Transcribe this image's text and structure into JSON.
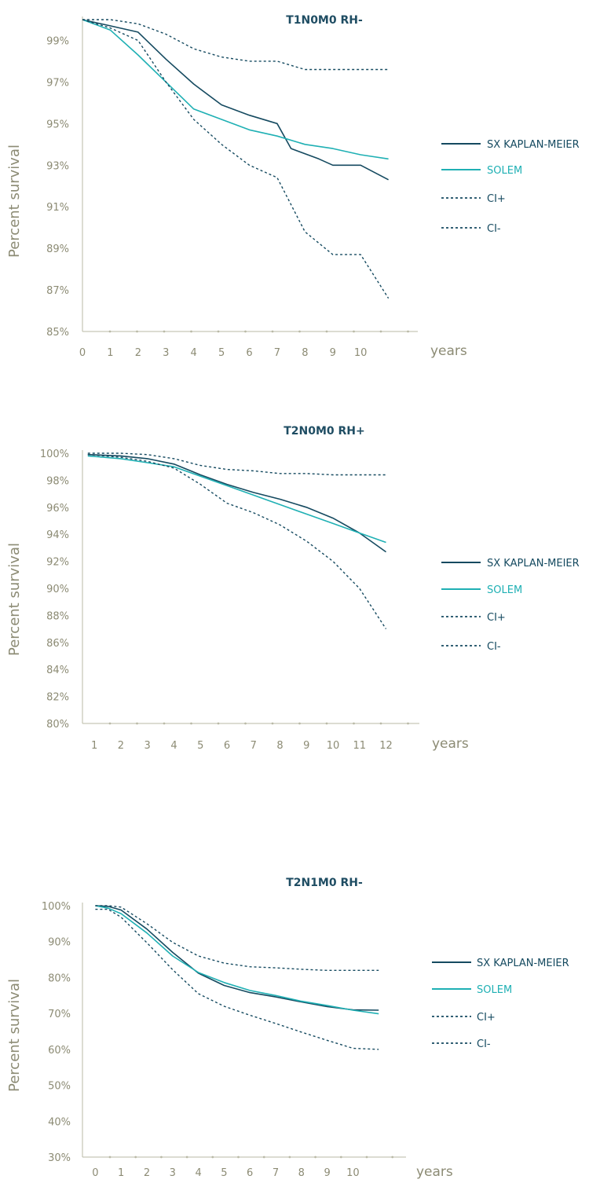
{
  "colors": {
    "dark": "#154a60",
    "teal": "#1fb0b4",
    "axis": "#b9b9a6",
    "text": "#8c8b74"
  },
  "chart_data": [
    {
      "type": "line",
      "title": "T1N0M0 RH-",
      "ylabel": "Percent survival",
      "xlabel": "years",
      "ylim": [
        85,
        100
      ],
      "yticks": [
        85,
        87,
        89,
        91,
        93,
        95,
        97,
        99
      ],
      "ytick_labels": [
        "85%",
        "87%",
        "89%",
        "91%",
        "93%",
        "95%",
        "97%",
        "99%"
      ],
      "xlim": [
        0,
        12
      ],
      "xticks": [
        0,
        1,
        2,
        3,
        4,
        5,
        6,
        7,
        8,
        9,
        10
      ],
      "xtick_labels": [
        "0",
        "1",
        "2",
        "3",
        "4",
        "5",
        "6",
        "7",
        "8",
        "9",
        "10"
      ],
      "legend_position": "right",
      "series": [
        {
          "name": "SX KAPLAN-MEIER",
          "style": "solid",
          "color": "#154a60",
          "points": [
            [
              0,
              100
            ],
            [
              1,
              99.7
            ],
            [
              2,
              99.4
            ],
            [
              3,
              98.1
            ],
            [
              4,
              96.9
            ],
            [
              5,
              95.9
            ],
            [
              6,
              95.4
            ],
            [
              7,
              95.0
            ],
            [
              7.5,
              93.8
            ],
            [
              8.5,
              93.3
            ],
            [
              9,
              93.0
            ],
            [
              10,
              93.0
            ],
            [
              11,
              92.3
            ]
          ]
        },
        {
          "name": "SOLEM",
          "style": "solid",
          "color": "#1fb0b4",
          "points": [
            [
              0,
              100
            ],
            [
              1,
              99.5
            ],
            [
              2,
              98.3
            ],
            [
              3,
              97.0
            ],
            [
              4,
              95.7
            ],
            [
              5,
              95.2
            ],
            [
              6,
              94.7
            ],
            [
              7,
              94.4
            ],
            [
              8,
              94.0
            ],
            [
              9,
              93.8
            ],
            [
              10,
              93.5
            ],
            [
              11,
              93.3
            ]
          ]
        },
        {
          "name": "CI+",
          "style": "dashed",
          "color": "#154a60",
          "points": [
            [
              0,
              100
            ],
            [
              1,
              100
            ],
            [
              2,
              99.8
            ],
            [
              3,
              99.3
            ],
            [
              4,
              98.6
            ],
            [
              5,
              98.2
            ],
            [
              6,
              98.0
            ],
            [
              7,
              98.0
            ],
            [
              8,
              97.6
            ],
            [
              9,
              97.6
            ],
            [
              10,
              97.6
            ],
            [
              11,
              97.6
            ]
          ]
        },
        {
          "name": "CI-",
          "style": "dashed",
          "color": "#154a60",
          "points": [
            [
              0,
              100
            ],
            [
              1,
              99.6
            ],
            [
              2,
              99.0
            ],
            [
              3,
              97.0
            ],
            [
              4,
              95.2
            ],
            [
              5,
              94.0
            ],
            [
              6,
              93.0
            ],
            [
              7,
              92.4
            ],
            [
              8,
              89.8
            ],
            [
              9,
              88.7
            ],
            [
              10,
              88.7
            ],
            [
              11,
              86.6
            ]
          ]
        }
      ]
    },
    {
      "type": "line",
      "title": "T2N0M0 RH+",
      "ylabel": "Percent survival",
      "xlabel": "years",
      "ylim": [
        80,
        100
      ],
      "yticks": [
        80,
        82,
        84,
        86,
        88,
        90,
        92,
        94,
        96,
        98,
        100
      ],
      "ytick_labels": [
        "80%",
        "82%",
        "84%",
        "86%",
        "88%",
        "90%",
        "92%",
        "94%",
        "96%",
        "98%",
        "100%"
      ],
      "xlim": [
        0.55,
        13.2
      ],
      "xticks": [
        1,
        2,
        3,
        4,
        5,
        6,
        7,
        8,
        9,
        10,
        11,
        12
      ],
      "xtick_labels": [
        "1",
        "2",
        "3",
        "4",
        "5",
        "6",
        "7",
        "8",
        "9",
        "10",
        "11",
        "12"
      ],
      "legend_position": "right",
      "series": [
        {
          "name": "SX KAPLAN-MEIER",
          "style": "solid",
          "color": "#154a60",
          "points": [
            [
              0.75,
              99.9
            ],
            [
              2,
              99.8
            ],
            [
              3,
              99.6
            ],
            [
              4,
              99.2
            ],
            [
              5,
              98.4
            ],
            [
              6,
              97.7
            ],
            [
              7,
              97.1
            ],
            [
              8,
              96.6
            ],
            [
              9,
              96.0
            ],
            [
              10,
              95.2
            ],
            [
              11,
              94.1
            ],
            [
              12,
              92.7
            ]
          ]
        },
        {
          "name": "SOLEM",
          "style": "solid",
          "color": "#1fb0b4",
          "points": [
            [
              0.75,
              99.8
            ],
            [
              2,
              99.6
            ],
            [
              3,
              99.3
            ],
            [
              4,
              99.0
            ],
            [
              5,
              98.3
            ],
            [
              6,
              97.6
            ],
            [
              7,
              96.9
            ],
            [
              8,
              96.2
            ],
            [
              9,
              95.5
            ],
            [
              10,
              94.8
            ],
            [
              11,
              94.1
            ],
            [
              12,
              93.4
            ]
          ]
        },
        {
          "name": "CI+",
          "style": "dashed",
          "color": "#154a60",
          "points": [
            [
              0.75,
              100
            ],
            [
              2,
              100
            ],
            [
              3,
              99.9
            ],
            [
              4,
              99.6
            ],
            [
              5,
              99.1
            ],
            [
              6,
              98.8
            ],
            [
              7,
              98.7
            ],
            [
              8,
              98.5
            ],
            [
              9,
              98.5
            ],
            [
              10,
              98.4
            ],
            [
              11,
              98.4
            ],
            [
              12,
              98.4
            ]
          ]
        },
        {
          "name": "CI-",
          "style": "dashed",
          "color": "#154a60",
          "points": [
            [
              0.75,
              99.9
            ],
            [
              2,
              99.7
            ],
            [
              3,
              99.4
            ],
            [
              4,
              98.9
            ],
            [
              5,
              97.7
            ],
            [
              6,
              96.3
            ],
            [
              7,
              95.6
            ],
            [
              8,
              94.7
            ],
            [
              9,
              93.5
            ],
            [
              10,
              92.0
            ],
            [
              11,
              90.0
            ],
            [
              12,
              87.0
            ]
          ]
        }
      ]
    },
    {
      "type": "line",
      "title": "T2N1M0 RH-",
      "ylabel": "Percent survival",
      "xlabel": "years",
      "ylim": [
        30,
        100
      ],
      "yticks": [
        30,
        40,
        50,
        60,
        70,
        80,
        90,
        100
      ],
      "ytick_labels": [
        "30%",
        "40%",
        "50%",
        "60%",
        "70%",
        "80%",
        "90%",
        "100%"
      ],
      "xlim": [
        -0.5,
        12
      ],
      "xticks": [
        0,
        1,
        2,
        3,
        4,
        5,
        6,
        7,
        8,
        9,
        10
      ],
      "xtick_labels": [
        "0",
        "1",
        "2",
        "3",
        "4",
        "5",
        "6",
        "7",
        "8",
        "9",
        "10"
      ],
      "legend_position": "right",
      "series": [
        {
          "name": "SX KAPLAN-MEIER",
          "style": "solid",
          "color": "#154a60",
          "points": [
            [
              0,
              100
            ],
            [
              0.5,
              99.8
            ],
            [
              1,
              98.8
            ],
            [
              2,
              93.5
            ],
            [
              3,
              87.0
            ],
            [
              4,
              81.2
            ],
            [
              5,
              77.8
            ],
            [
              6,
              75.8
            ],
            [
              7,
              74.6
            ],
            [
              8,
              73.2
            ],
            [
              9,
              71.9
            ],
            [
              10,
              71.0
            ],
            [
              11,
              70.9
            ]
          ]
        },
        {
          "name": "SOLEM",
          "style": "solid",
          "color": "#1fb0b4",
          "points": [
            [
              0,
              100
            ],
            [
              0.5,
              99.3
            ],
            [
              1,
              97.8
            ],
            [
              2,
              92.4
            ],
            [
              3,
              86.0
            ],
            [
              4,
              81.4
            ],
            [
              5,
              78.6
            ],
            [
              6,
              76.4
            ],
            [
              7,
              75.0
            ],
            [
              8,
              73.4
            ],
            [
              9,
              72.2
            ],
            [
              10,
              70.9
            ],
            [
              11,
              69.9
            ]
          ]
        },
        {
          "name": "CI+",
          "style": "dashed",
          "color": "#154a60",
          "points": [
            [
              0,
              100
            ],
            [
              0.5,
              100
            ],
            [
              1,
              99.6
            ],
            [
              2,
              95.0
            ],
            [
              3,
              89.8
            ],
            [
              4,
              86.0
            ],
            [
              5,
              84.0
            ],
            [
              6,
              83.0
            ],
            [
              7,
              82.7
            ],
            [
              8,
              82.3
            ],
            [
              9,
              82.0
            ],
            [
              10,
              82.0
            ],
            [
              11,
              82.0
            ]
          ]
        },
        {
          "name": "CI-",
          "style": "dashed",
          "color": "#154a60",
          "points": [
            [
              0,
              99.0
            ],
            [
              0.5,
              99.0
            ],
            [
              1,
              96.8
            ],
            [
              2,
              89.7
            ],
            [
              3,
              82.2
            ],
            [
              4,
              75.5
            ],
            [
              5,
              72.0
            ],
            [
              6,
              69.5
            ],
            [
              7,
              67.2
            ],
            [
              8,
              64.8
            ],
            [
              9,
              62.5
            ],
            [
              10,
              60.3
            ],
            [
              11,
              60.0
            ]
          ]
        }
      ]
    }
  ]
}
